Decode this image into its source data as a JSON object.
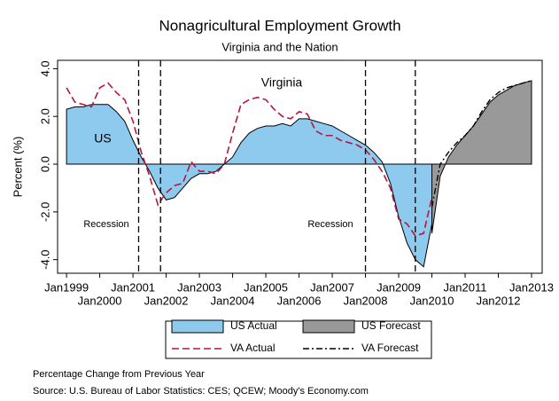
{
  "chart_data": {
    "type": "area-line",
    "title": "Nonagricultural Employment Growth",
    "subtitle": "Virginia and the Nation",
    "y_label": "Percent (%)",
    "xlim": [
      1998.73,
      2013.32
    ],
    "ylim": [
      -4.57,
      4.35
    ],
    "xticks": [
      {
        "value": 1999,
        "label": "Jan1999"
      },
      {
        "value": 2000,
        "label": "Jan2000"
      },
      {
        "value": 2001,
        "label": "Jan2001"
      },
      {
        "value": 2002,
        "label": "Jan2002"
      },
      {
        "value": 2003,
        "label": "Jan2003"
      },
      {
        "value": 2004,
        "label": "Jan2004"
      },
      {
        "value": 2005,
        "label": "Jan2005"
      },
      {
        "value": 2006,
        "label": "Jan2006"
      },
      {
        "value": 2007,
        "label": "Jan2007"
      },
      {
        "value": 2008,
        "label": "Jan2008"
      },
      {
        "value": 2009,
        "label": "Jan2009"
      },
      {
        "value": 2010,
        "label": "Jan2010"
      },
      {
        "value": 2011,
        "label": "Jan2011"
      },
      {
        "value": 2012,
        "label": "Jan2012"
      },
      {
        "value": 2013,
        "label": "Jan2013"
      }
    ],
    "yticks": [
      {
        "value": 4,
        "label": "4.0"
      },
      {
        "value": 2,
        "label": "2.0"
      },
      {
        "value": 0,
        "label": "0.0"
      },
      {
        "value": -2,
        "label": "-2.0"
      },
      {
        "value": -4,
        "label": "-4.0"
      }
    ],
    "recession_lines": [
      2001.17,
      2001.83,
      2008.0,
      2009.5
    ],
    "annotations": [
      "Virginia",
      "US",
      "Recession",
      "Recession"
    ],
    "series": [
      {
        "name": "US Actual",
        "kind": "area",
        "color": "#8ec9ee",
        "x": [
          1999,
          1999.25,
          1999.5,
          1999.75,
          2000,
          2000.25,
          2000.5,
          2000.75,
          2001,
          2001.25,
          2001.5,
          2001.75,
          2002,
          2002.25,
          2002.5,
          2002.75,
          2003,
          2003.25,
          2003.5,
          2003.75,
          2004,
          2004.25,
          2004.5,
          2004.75,
          2005,
          2005.25,
          2005.5,
          2005.75,
          2006,
          2006.25,
          2006.5,
          2006.75,
          2007,
          2007.25,
          2007.5,
          2007.75,
          2008,
          2008.25,
          2008.5,
          2008.75,
          2009,
          2009.25,
          2009.5,
          2009.75,
          2010
        ],
        "values": [
          2.3,
          2.4,
          2.4,
          2.5,
          2.5,
          2.5,
          2.2,
          1.8,
          1.0,
          0.3,
          -0.3,
          -1.0,
          -1.5,
          -1.4,
          -1.0,
          -0.6,
          -0.4,
          -0.4,
          -0.3,
          0.0,
          0.3,
          0.9,
          1.3,
          1.5,
          1.6,
          1.6,
          1.7,
          1.6,
          1.9,
          1.9,
          1.8,
          1.7,
          1.6,
          1.4,
          1.2,
          1.0,
          0.8,
          0.5,
          0.1,
          -0.8,
          -2.2,
          -3.3,
          -4.0,
          -4.3,
          -2.5
        ]
      },
      {
        "name": "VA Actual",
        "kind": "dashed",
        "color": "#b5163f",
        "x": [
          1999,
          1999.25,
          1999.5,
          1999.75,
          2000,
          2000.25,
          2000.5,
          2000.75,
          2001,
          2001.25,
          2001.5,
          2001.75,
          2002,
          2002.25,
          2002.5,
          2002.75,
          2003,
          2003.25,
          2003.5,
          2003.75,
          2004,
          2004.25,
          2004.5,
          2004.75,
          2005,
          2005.25,
          2005.5,
          2005.75,
          2006,
          2006.25,
          2006.5,
          2006.75,
          2007,
          2007.25,
          2007.5,
          2007.75,
          2008,
          2008.25,
          2008.5,
          2008.75,
          2009,
          2009.25,
          2009.5,
          2009.75,
          2010
        ],
        "values": [
          3.2,
          2.6,
          2.5,
          2.4,
          3.2,
          3.4,
          3.0,
          2.7,
          1.8,
          0.5,
          -0.5,
          -1.7,
          -1.2,
          -0.9,
          -0.8,
          0.1,
          -0.3,
          -0.3,
          -0.4,
          0.0,
          1.3,
          2.5,
          2.7,
          2.8,
          2.7,
          2.3,
          2.0,
          1.9,
          2.2,
          2.1,
          1.4,
          1.2,
          1.2,
          1.0,
          0.9,
          0.8,
          0.6,
          0.2,
          -0.3,
          -1.0,
          -2.3,
          -2.5,
          -3.0,
          -2.9,
          -1.4
        ]
      },
      {
        "name": "US Forecast",
        "kind": "area",
        "color": "#999999",
        "x": [
          2010,
          2010.25,
          2010.5,
          2010.75,
          2011,
          2011.25,
          2011.5,
          2011.75,
          2012,
          2012.25,
          2012.5,
          2012.75,
          2013
        ],
        "values": [
          -2.9,
          -0.5,
          0.3,
          0.8,
          1.2,
          1.6,
          2.1,
          2.6,
          2.9,
          3.1,
          3.3,
          3.4,
          3.5
        ]
      },
      {
        "name": "VA Forecast",
        "kind": "dashdot",
        "color": "#000000",
        "x": [
          2010,
          2010.25,
          2010.5,
          2010.75,
          2011,
          2011.25,
          2011.5,
          2011.75,
          2012,
          2012.25,
          2012.5,
          2012.75,
          2013
        ],
        "values": [
          -1.8,
          0.0,
          0.5,
          0.9,
          1.2,
          1.6,
          2.2,
          2.7,
          3.0,
          3.2,
          3.3,
          3.4,
          3.5
        ]
      }
    ],
    "notes": [
      "Percentage Change from Previous Year",
      "Source: U.S. Bureau of Labor Statistics: CES; QCEW; Moody's Economy.com"
    ]
  }
}
